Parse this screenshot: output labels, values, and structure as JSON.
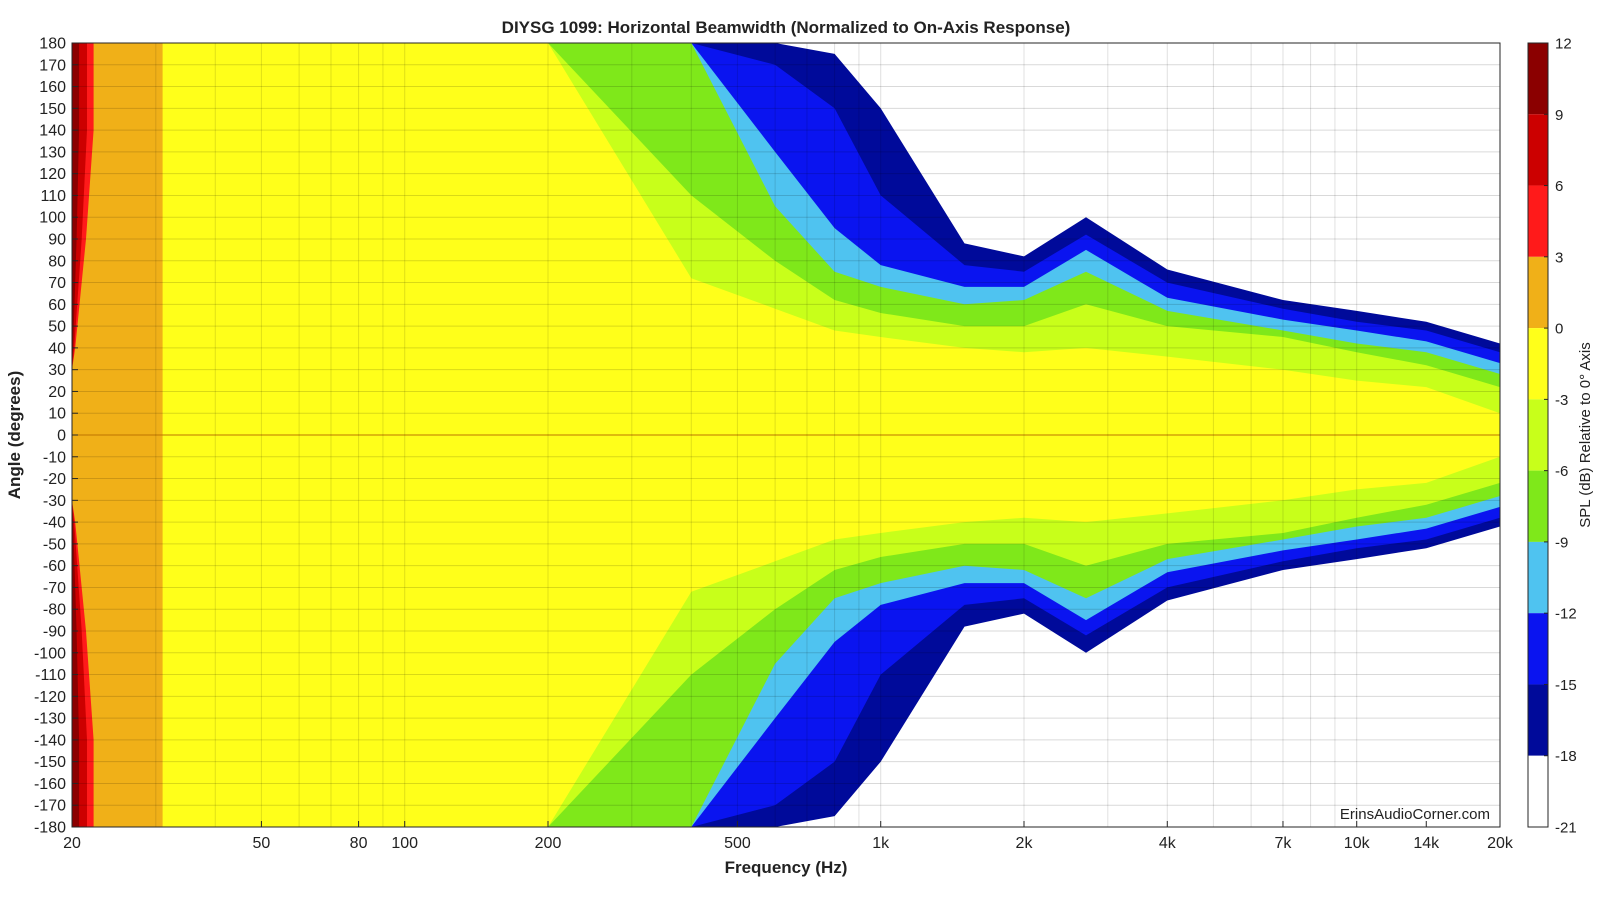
{
  "chart_data": {
    "type": "heatmap",
    "title": "DIYSG 1099: Horizontal Beamwidth (Normalized to On-Axis Response)",
    "xlabel": "Frequency (Hz)",
    "ylabel": "Angle (degrees)",
    "x_scale": "log",
    "xlim": [
      20,
      20000
    ],
    "ylim": [
      -180,
      180
    ],
    "x_ticks": [
      20,
      50,
      80,
      100,
      200,
      500,
      1000,
      2000,
      4000,
      7000,
      10000,
      14000,
      20000
    ],
    "x_tick_labels": [
      "20",
      "50",
      "80",
      "100",
      "200",
      "500",
      "1k",
      "2k",
      "4k",
      "7k",
      "10k",
      "14k",
      "20k"
    ],
    "y_ticks": [
      180,
      170,
      160,
      150,
      140,
      130,
      120,
      110,
      100,
      90,
      80,
      70,
      60,
      50,
      40,
      30,
      20,
      10,
      0,
      -10,
      -20,
      -30,
      -40,
      -50,
      -60,
      -70,
      -80,
      -90,
      -100,
      -110,
      -120,
      -130,
      -140,
      -150,
      -160,
      -170,
      -180
    ],
    "y_tick_labels": [
      "180",
      "170",
      "160",
      "150",
      "140",
      "130",
      "120",
      "110",
      "100",
      "90",
      "80",
      "70",
      "60",
      "50",
      "40",
      "30",
      "20",
      "10",
      "0",
      "-10",
      "-20",
      "-30",
      "-40",
      "-50",
      "-60",
      "-70",
      "-80",
      "-90",
      "-100",
      "-110",
      "-120",
      "-130",
      "-140",
      "-150",
      "-160",
      "-170",
      "-180"
    ],
    "grid": true,
    "watermark": "ErinsAudioCorner.com",
    "colorbar": {
      "label": "SPL (dB) Relative to 0° Axis",
      "ticks": [
        12,
        9,
        6,
        3,
        0,
        -3,
        -6,
        -9,
        -12,
        -15,
        -18,
        -21
      ],
      "levels": [
        {
          "min": 9,
          "max": 12,
          "color": "#8B0000"
        },
        {
          "min": 6,
          "max": 9,
          "color": "#CC0000"
        },
        {
          "min": 3,
          "max": 6,
          "color": "#FF1A1A"
        },
        {
          "min": 0,
          "max": 3,
          "color": "#F0B018"
        },
        {
          "min": -3,
          "max": 0,
          "color": "#FFFF1A"
        },
        {
          "min": -6,
          "max": -3,
          "color": "#C8FF1A"
        },
        {
          "min": -9,
          "max": -6,
          "color": "#7FE81A"
        },
        {
          "min": -12,
          "max": -9,
          "color": "#4FC3F0"
        },
        {
          "min": -15,
          "max": -12,
          "color": "#0A14F0"
        },
        {
          "min": -18,
          "max": -15,
          "color": "#000A9A"
        },
        {
          "min": -21,
          "max": -18,
          "color": "#FFFFFF"
        }
      ]
    },
    "beamwidth_contours": {
      "frequencies_hz": [
        20,
        200,
        400,
        600,
        800,
        1000,
        1500,
        2000,
        2700,
        4000,
        7000,
        10000,
        14000,
        20000
      ],
      "level_edges_deg": {
        "-3": [
          180,
          180,
          72,
          58,
          48,
          45,
          40,
          38,
          40,
          36,
          30,
          25,
          22,
          10
        ],
        "-6": [
          180,
          180,
          110,
          80,
          62,
          56,
          50,
          50,
          60,
          50,
          45,
          38,
          32,
          22
        ],
        "-9": [
          180,
          180,
          180,
          105,
          75,
          68,
          60,
          62,
          75,
          57,
          48,
          42,
          38,
          28
        ],
        "-12": [
          180,
          180,
          180,
          130,
          95,
          78,
          68,
          68,
          85,
          63,
          53,
          48,
          43,
          33
        ],
        "-15": [
          180,
          180,
          180,
          170,
          150,
          110,
          78,
          75,
          92,
          70,
          58,
          52,
          48,
          38
        ],
        "-18": [
          180,
          180,
          180,
          180,
          175,
          150,
          88,
          82,
          100,
          76,
          62,
          57,
          52,
          42
        ]
      },
      "low_frequency_positive_edge_hz": {
        "0": 31,
        "3": 22.2,
        "6": 21.5,
        "9": 20.7
      }
    }
  }
}
